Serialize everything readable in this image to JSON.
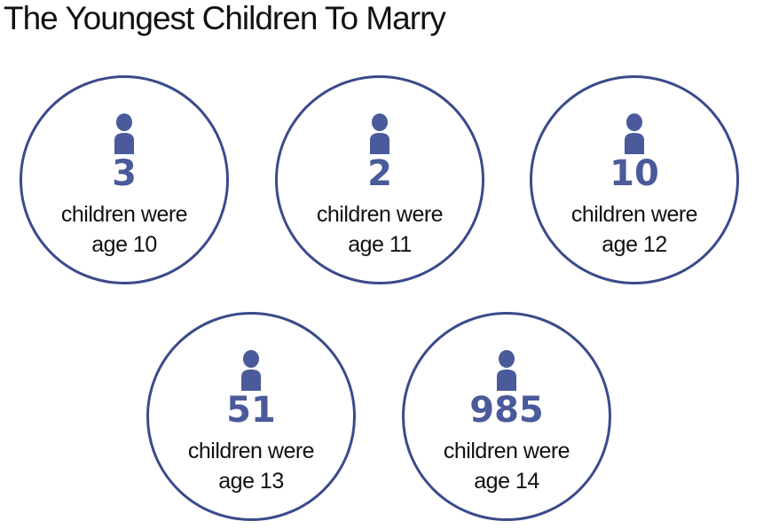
{
  "chart_data": {
    "type": "pictogram",
    "title": "The Youngest Children To Marry",
    "caption_prefix": "children were",
    "categories": [
      "age 10",
      "age 11",
      "age 12",
      "age 13",
      "age 14"
    ],
    "values": [
      3,
      2,
      10,
      51,
      985
    ],
    "items": [
      {
        "count": "3",
        "line1": "children were",
        "line2": "age 10"
      },
      {
        "count": "2",
        "line1": "children were",
        "line2": "age 11"
      },
      {
        "count": "10",
        "line1": "children were",
        "line2": "age 12"
      },
      {
        "count": "51",
        "line1": "children were",
        "line2": "age 13"
      },
      {
        "count": "985",
        "line1": "children were",
        "line2": "age 14"
      }
    ],
    "colors": {
      "circle_border": "#3b4a8a",
      "accent": "#4a5a9a",
      "text": "#111111"
    },
    "icon": "person-icon"
  }
}
